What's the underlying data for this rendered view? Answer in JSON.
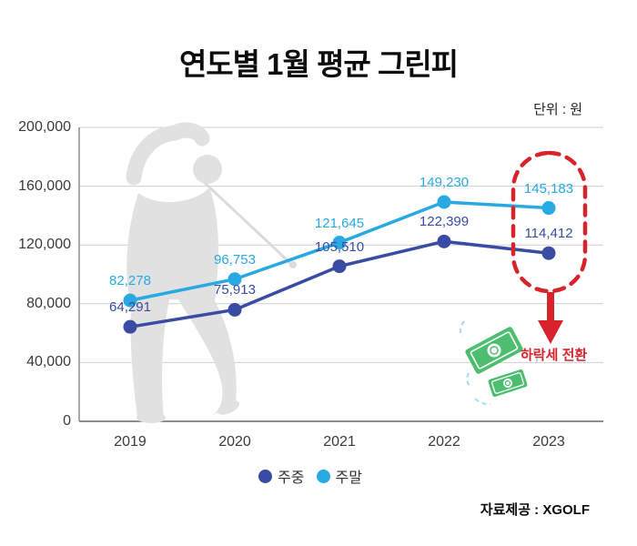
{
  "title": "연도별 1월 평균 그린피",
  "unit_label": "단위 : 원",
  "source_label": "자료제공 : XGOLF",
  "annotation": {
    "text": "하락세 전환"
  },
  "legend": [
    {
      "name": "주중",
      "color": "#3A4BA3"
    },
    {
      "name": "주말",
      "color": "#29A9E2"
    }
  ],
  "colors": {
    "accent_red": "#D7232B",
    "weekday_blue": "#3A4BA3",
    "weekend_blue": "#29A9E2",
    "money_green": "#4DBE70",
    "money_motion_blue": "#A9D7EE",
    "watermark_gray": "#E1E1E1",
    "gridline_gray": "#CFCFCF",
    "axis_gray": "#8E8E8E"
  },
  "chart_data": {
    "type": "line",
    "title": "연도별 1월 평균 그린피",
    "ylabel": "원",
    "categories": [
      "2019",
      "2020",
      "2021",
      "2022",
      "2023"
    ],
    "series": [
      {
        "key": "weekday",
        "name": "주중",
        "color": "#3A4BA3",
        "values": [
          64291,
          75913,
          105510,
          122399,
          114412
        ]
      },
      {
        "key": "weekend",
        "name": "주말",
        "color": "#29A9E2",
        "values": [
          82278,
          96753,
          121645,
          149230,
          145183
        ]
      }
    ],
    "ylim": [
      0,
      200000
    ],
    "yticks": [
      0,
      40000,
      80000,
      120000,
      160000,
      200000
    ],
    "grid": true,
    "legend_position": "bottom",
    "annotations": [
      "2023 값 주변 빨간 점선 타원",
      "하락세 전환 화살표"
    ]
  }
}
